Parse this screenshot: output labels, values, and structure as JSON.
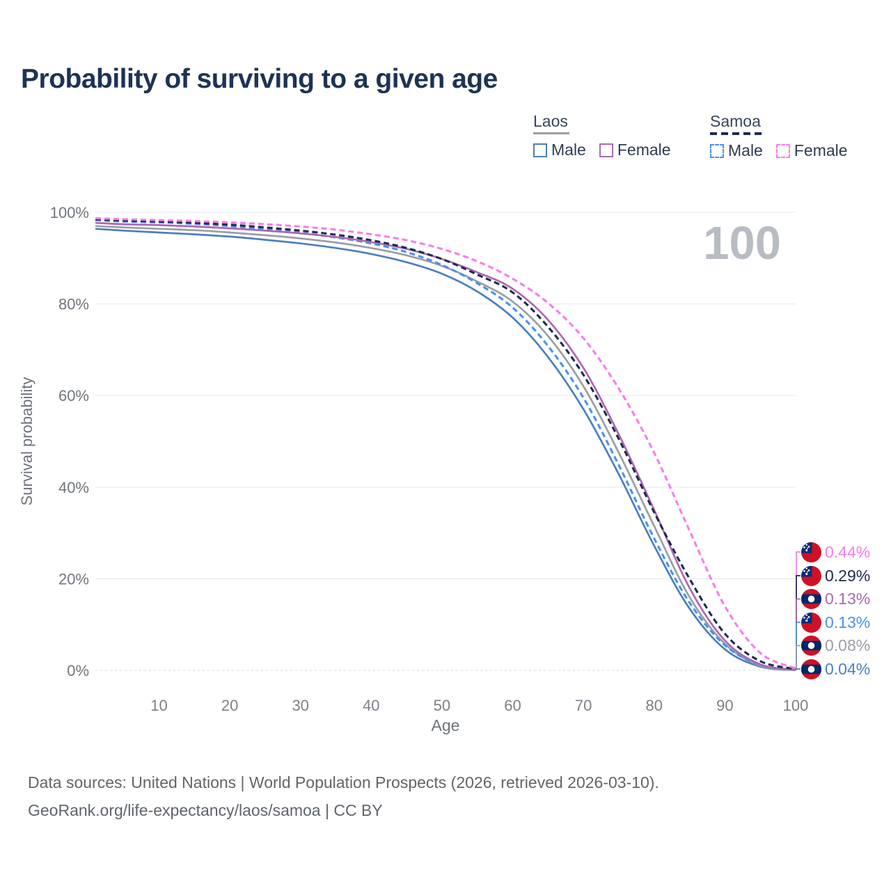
{
  "title": "Probability of surviving to a given age",
  "watermark": "100",
  "legend": {
    "groups": [
      {
        "label": "Laos",
        "line_style": "solid",
        "underline_color": "#9b9ea4",
        "items": [
          {
            "label": "Male",
            "color": "#4a7fc1"
          },
          {
            "label": "Female",
            "color": "#ad68b0"
          }
        ]
      },
      {
        "label": "Samoa",
        "line_style": "dashed",
        "underline_color": "#1d2c4e",
        "items": [
          {
            "label": "Male",
            "color": "#4b90f2"
          },
          {
            "label": "Female",
            "color": "#f97de7"
          }
        ]
      }
    ]
  },
  "chart_data": {
    "type": "line",
    "title": "Probability of surviving to a given age",
    "xlabel": "Age",
    "ylabel": "Survival probability",
    "xlim": [
      1,
      100
    ],
    "ylim": [
      0,
      100
    ],
    "grid": "horizontal",
    "legend_position": "top-right",
    "x_ticks": [
      10,
      20,
      30,
      40,
      50,
      60,
      70,
      80,
      90,
      100
    ],
    "y_ticks": [
      {
        "label": "0%",
        "value": 0
      },
      {
        "label": "20%",
        "value": 20
      },
      {
        "label": "40%",
        "value": 40
      },
      {
        "label": "60%",
        "value": 60
      },
      {
        "label": "80%",
        "value": 80
      },
      {
        "label": "100%",
        "value": 100
      }
    ],
    "ages": [
      1,
      5,
      10,
      15,
      20,
      25,
      30,
      35,
      40,
      45,
      50,
      55,
      60,
      65,
      70,
      75,
      80,
      85,
      90,
      95,
      100
    ],
    "series": [
      {
        "id": "samoa-female",
        "name": "Samoa Female",
        "country": "Samoa",
        "sex": "Female",
        "color": "#f97de7",
        "dash": "dashed",
        "flag": "samoa",
        "end_label": "0.44%",
        "values": [
          98.7,
          98.5,
          98.3,
          98.1,
          97.8,
          97.4,
          96.9,
          96.2,
          95.2,
          93.9,
          92.0,
          89.3,
          85.5,
          80.2,
          72.5,
          61.5,
          47.5,
          30.5,
          14.0,
          3.8,
          0.44
        ]
      },
      {
        "id": "samoa-both",
        "name": "Samoa Both sexes",
        "country": "Samoa",
        "sex": "Both",
        "color": "#1d2c4e",
        "dash": "dashed",
        "flag": "samoa",
        "end_label": "0.29%",
        "values": [
          98.5,
          98.2,
          98.0,
          97.7,
          97.3,
          96.7,
          96.0,
          95.1,
          93.9,
          92.2,
          89.8,
          86.4,
          82.5,
          75.0,
          64.5,
          50.5,
          34.5,
          20.0,
          8.0,
          2.0,
          0.29
        ]
      },
      {
        "id": "laos-female",
        "name": "Laos Female",
        "country": "Laos",
        "sex": "Female",
        "color": "#ad68b0",
        "dash": "solid",
        "flag": "laos",
        "end_label": "0.13%",
        "values": [
          97.7,
          97.4,
          97.2,
          96.9,
          96.5,
          96.0,
          95.4,
          94.6,
          93.5,
          92.0,
          89.8,
          86.9,
          83.3,
          76.5,
          66.0,
          51.5,
          35.0,
          18.0,
          6.5,
          1.3,
          0.13
        ]
      },
      {
        "id": "samoa-male",
        "name": "Samoa Male",
        "country": "Samoa",
        "sex": "Male",
        "color": "#4b90f2",
        "dash": "dashed",
        "flag": "samoa",
        "end_label": "0.13%",
        "values": [
          98.3,
          98.0,
          97.8,
          97.5,
          97.0,
          96.3,
          95.5,
          94.5,
          93.2,
          91.3,
          88.5,
          84.5,
          79.2,
          70.8,
          59.5,
          44.8,
          28.8,
          14.8,
          5.5,
          1.2,
          0.13
        ]
      },
      {
        "id": "laos-both",
        "name": "Laos Both sexes",
        "country": "Laos",
        "sex": "Both",
        "color": "#9b9ea4",
        "dash": "solid",
        "flag": "laos",
        "end_label": "0.08%",
        "values": [
          97.0,
          96.7,
          96.4,
          96.1,
          95.6,
          95.0,
          94.3,
          93.4,
          92.2,
          90.6,
          88.3,
          84.9,
          80.5,
          73.0,
          62.0,
          47.5,
          31.5,
          16.0,
          5.8,
          1.0,
          0.08
        ]
      },
      {
        "id": "laos-male",
        "name": "Laos Male",
        "country": "Laos",
        "sex": "Male",
        "color": "#4a7fc1",
        "dash": "solid",
        "flag": "laos",
        "end_label": "0.04%",
        "values": [
          96.4,
          96.0,
          95.6,
          95.2,
          94.7,
          94.0,
          93.2,
          92.2,
          90.9,
          89.1,
          86.6,
          82.7,
          77.0,
          68.4,
          57.0,
          42.8,
          27.2,
          13.5,
          4.6,
          0.8,
          0.04
        ]
      }
    ]
  },
  "footer": {
    "line1": "Data sources: United Nations | World Population Prospects (2026, retrieved 2026-03-10).",
    "line2": "GeoRank.org/life-expectancy/laos/samoa | CC BY"
  }
}
